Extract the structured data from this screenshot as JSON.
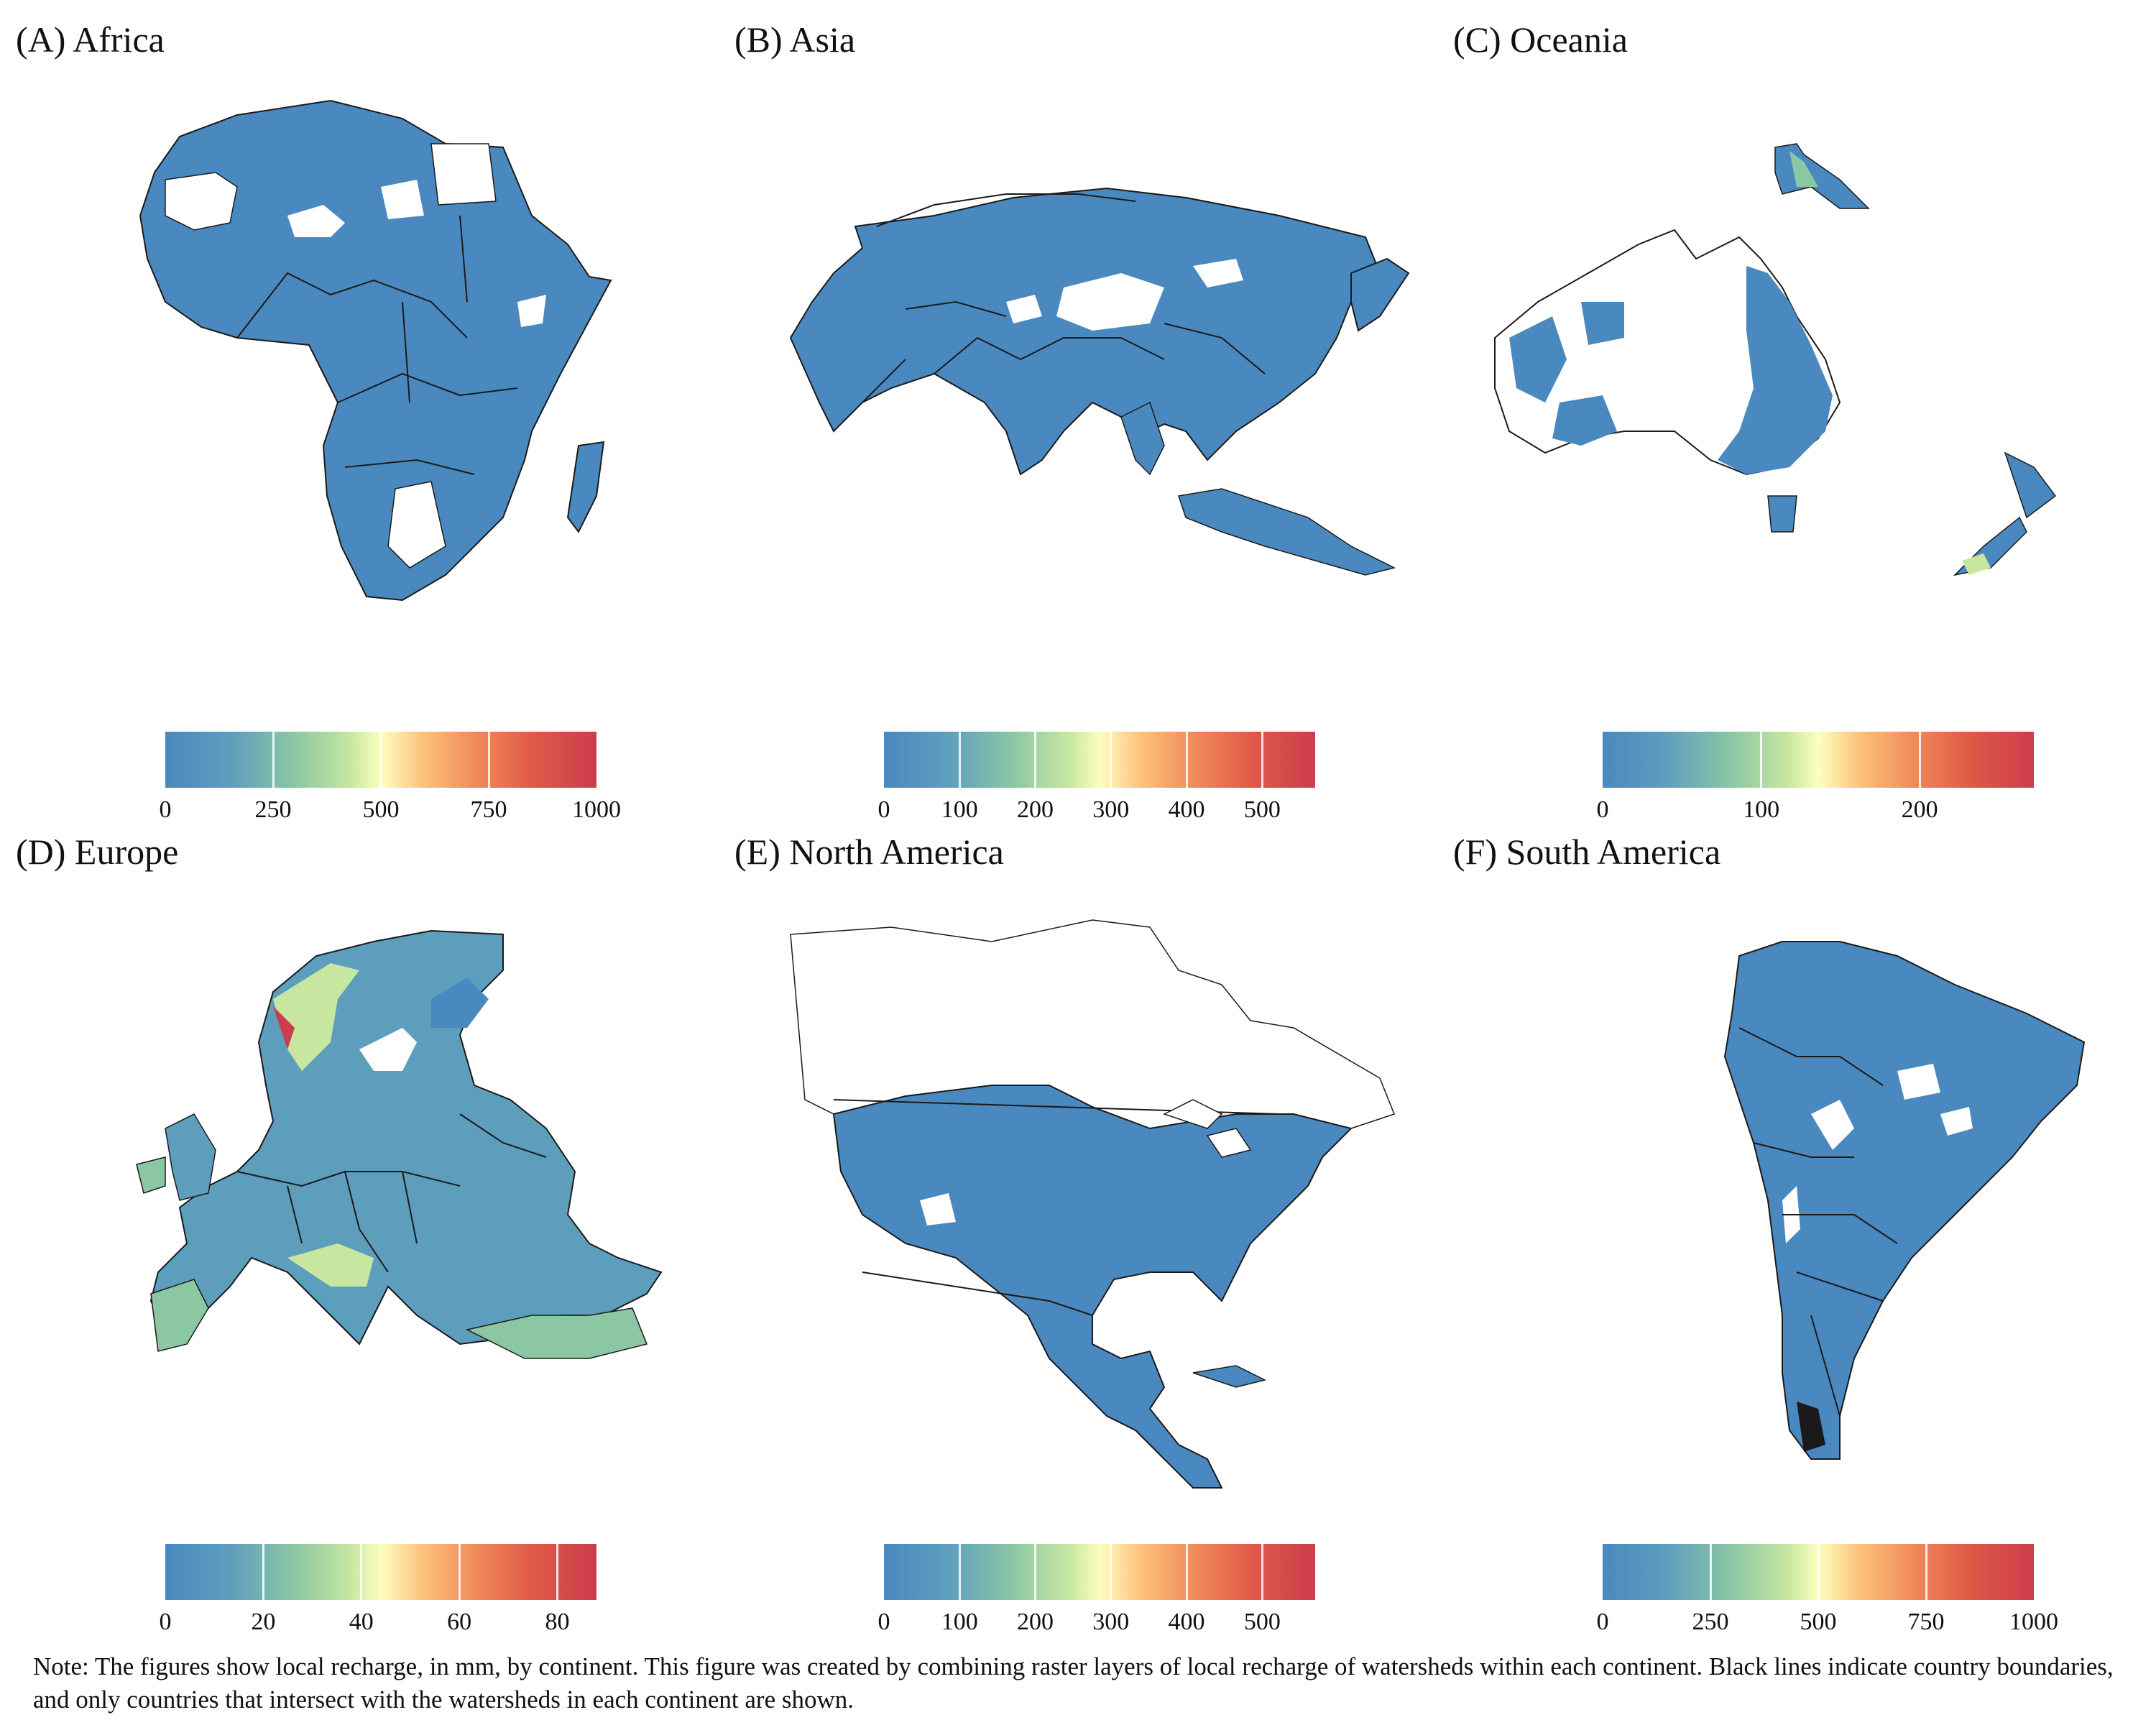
{
  "palette": [
    "#4a89bf",
    "#5e9ebd",
    "#8cc7a4",
    "#c7e7a0",
    "#fdfebf",
    "#fdc07a",
    "#f08a5a",
    "#e05a48",
    "#cc3d4c"
  ],
  "land_color": "#4a89bf",
  "border_color": "#1a1a1a",
  "panels": [
    {
      "id": "africa",
      "title": "(A) Africa",
      "legend_max": 1000,
      "ticks": [
        {
          "v": 0,
          "l": "0"
        },
        {
          "v": 250,
          "l": "250"
        },
        {
          "v": 500,
          "l": "500"
        },
        {
          "v": 750,
          "l": "750"
        },
        {
          "v": 1000,
          "l": "1000"
        }
      ]
    },
    {
      "id": "asia",
      "title": "(B) Asia",
      "legend_max": 570,
      "ticks": [
        {
          "v": 0,
          "l": "0"
        },
        {
          "v": 100,
          "l": "100"
        },
        {
          "v": 200,
          "l": "200"
        },
        {
          "v": 300,
          "l": "300"
        },
        {
          "v": 400,
          "l": "400"
        },
        {
          "v": 500,
          "l": "500"
        }
      ]
    },
    {
      "id": "oceania",
      "title": "(C) Oceania",
      "legend_max": 272,
      "ticks": [
        {
          "v": 0,
          "l": "0"
        },
        {
          "v": 100,
          "l": "100"
        },
        {
          "v": 200,
          "l": "200"
        }
      ]
    },
    {
      "id": "europe",
      "title": "(D) Europe",
      "legend_max": 88,
      "ticks": [
        {
          "v": 0,
          "l": "0"
        },
        {
          "v": 20,
          "l": "20"
        },
        {
          "v": 40,
          "l": "40"
        },
        {
          "v": 60,
          "l": "60"
        },
        {
          "v": 80,
          "l": "80"
        }
      ]
    },
    {
      "id": "north-america",
      "title": "(E) North America",
      "legend_max": 570,
      "ticks": [
        {
          "v": 0,
          "l": "0"
        },
        {
          "v": 100,
          "l": "100"
        },
        {
          "v": 200,
          "l": "200"
        },
        {
          "v": 300,
          "l": "300"
        },
        {
          "v": 400,
          "l": "400"
        },
        {
          "v": 500,
          "l": "500"
        }
      ]
    },
    {
      "id": "south-america",
      "title": "(F) South America",
      "legend_max": 1000,
      "ticks": [
        {
          "v": 0,
          "l": "0"
        },
        {
          "v": 250,
          "l": "250"
        },
        {
          "v": 500,
          "l": "500"
        },
        {
          "v": 750,
          "l": "750"
        },
        {
          "v": 1000,
          "l": "1000"
        }
      ]
    }
  ],
  "note": "Note: The figures show local recharge, in mm, by continent. This figure was created by combining raster layers of local recharge of watersheds within each continent. Black lines indicate country boundaries, and only countries that intersect with the watersheds in each continent are shown."
}
